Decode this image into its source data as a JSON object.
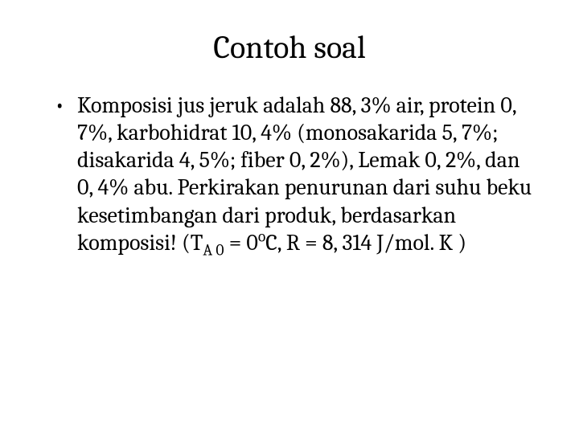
{
  "slide": {
    "title": "Contoh soal",
    "bullet": {
      "fullText": "Komposisi jus jeruk adalah 88, 3% air, protein 0, 7%, karbohidrat 10, 4% (monosakarida 5, 7%; disakarida 4, 5%; fiber 0, 2%), Lemak 0, 2%, dan 0, 4% abu. Perkirakan penurunan dari suhu beku kesetimbangan dari produk, berdasarkan komposisi! (T",
      "sub1": "A 0",
      "mid1": " = 0",
      "sup1": "o",
      "mid2": "C, R = 8, 314 J/mol. K )"
    }
  },
  "styling": {
    "background_color": "#ffffff",
    "text_color": "#000000",
    "title_fontsize": 40,
    "body_fontsize": 28,
    "font_family": "Cambria, Georgia, serif",
    "slide_width": 720,
    "slide_height": 540
  }
}
